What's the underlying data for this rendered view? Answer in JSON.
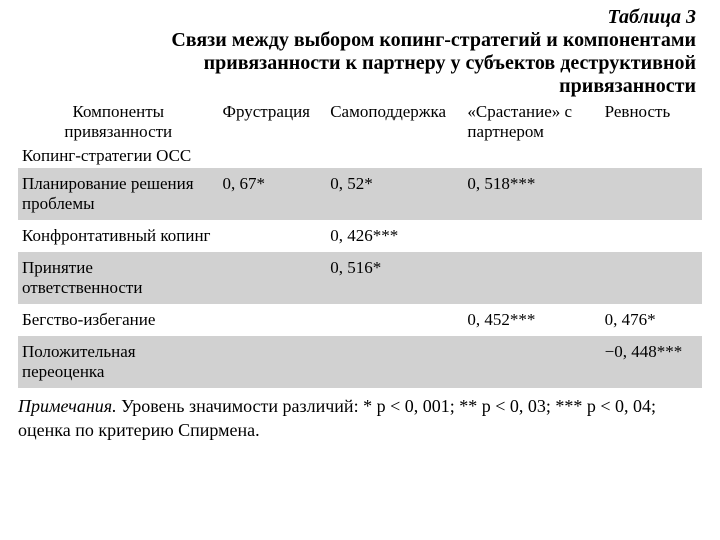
{
  "table_label": "Таблица 3",
  "title_lines": [
    "Связи между выбором копинг-стратегий и компонентами",
    "привязанности к партнеру у субъектов деструктивной",
    "привязанности"
  ],
  "columns": [
    "Компоненты привязанности",
    "Фрустрация",
    "Самоподдержка",
    "«Срастание» с партнером",
    "Ревность"
  ],
  "section_row": "Копинг-стратегии ОСС",
  "rows": [
    {
      "label": "Планирование решения проблемы",
      "cells": [
        "0, 67*",
        "0, 52*",
        "0, 518***",
        ""
      ]
    },
    {
      "label": "Конфронтативный копинг",
      "cells": [
        "",
        "0, 426***",
        "",
        ""
      ]
    },
    {
      "label": "Принятие ответственности",
      "cells": [
        "",
        "0, 516*",
        "",
        ""
      ]
    },
    {
      "label": "Бегство-избегание",
      "cells": [
        "",
        "",
        "0, 452***",
        "0, 476*"
      ]
    },
    {
      "label": "Положительная переоценка",
      "cells": [
        "",
        "",
        "",
        "−0, 448***"
      ]
    }
  ],
  "band_indices": [
    0,
    2,
    4
  ],
  "notes_label": "Примечания.",
  "notes_rest": " Уровень значимости различий: * р < 0, 001; ** р < 0, 03; *** р < 0, 04; оценка по критерию Спирмена.",
  "col_widths": [
    "190px",
    "102px",
    "130px",
    "130px",
    "96px"
  ],
  "colors": {
    "band": "#d1d1d1",
    "text": "#000000",
    "bg": "#ffffff"
  }
}
